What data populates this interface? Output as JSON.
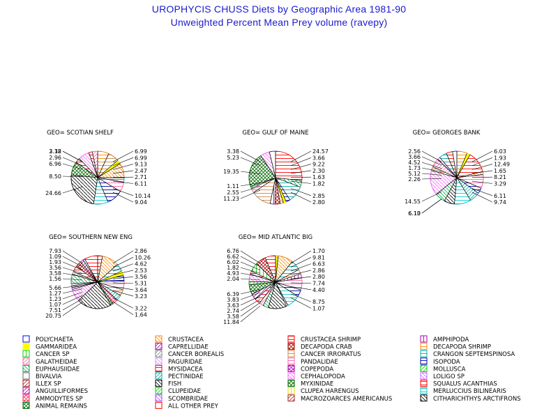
{
  "header": {
    "title": "UROPHYCIS CHUSS Diets by Geographic Area 1981-90",
    "subtitle": "Unweighted Percent Mean Prey volume (ravepy)"
  },
  "chart_data": [
    {
      "type": "pie",
      "title": "GEO= SCOTIAN SHELF",
      "slices": [
        {
          "prey": "DECAPODA SHRIMP",
          "value": 6.99
        },
        {
          "prey": "CANCER IRRORATUS",
          "value": 6.99
        },
        {
          "prey": "GAMMARIDEA",
          "value": 2.47
        },
        {
          "prey": "CRUSTACEA",
          "value": 9.13
        },
        {
          "prey": "CRANGON SEPTEMSPINOSA",
          "value": 2.71
        },
        {
          "prey": "PANDALIDAE",
          "value": 6.11
        },
        {
          "prey": "ISOPODA",
          "value": 10.14
        },
        {
          "prey": "MERLUCCIUS BILINEARIS",
          "value": 9.04
        },
        {
          "prey": "FISH",
          "value": 24.66
        },
        {
          "prey": "MYXINIDAE",
          "value": 8.5
        },
        {
          "prey": "CRUSTACEA SHRIMP",
          "value": 2.96
        },
        {
          "prey": "CEPHALOPODA",
          "value": 6.96
        },
        {
          "prey": "SQUALUS ACANTHIAS",
          "value": 2.18
        },
        {
          "prey": "GALATHEIDAE",
          "value": 3.32
        }
      ],
      "left_labels": [
        "3.32",
        "2.18",
        "2.96",
        "6.96",
        "8.50",
        "24.66"
      ],
      "right_labels": [
        "6.99",
        "6.99",
        "9.13",
        "2.47",
        "2.71",
        "6.11",
        "10.14",
        "9.04"
      ]
    },
    {
      "type": "pie",
      "title": "GEO= GULF OF MAINE",
      "slices": [
        {
          "prey": "CRUSTACEA SHRIMP",
          "value": 24.57
        },
        {
          "prey": "EUPHAUSIIDAE",
          "value": 3.66
        },
        {
          "prey": "CRANGON SEPTEMSPINOSA",
          "value": 9.22
        },
        {
          "prey": "ISOPODA",
          "value": 2.3
        },
        {
          "prey": "GAMMARIDEA",
          "value": 1.63
        },
        {
          "prey": "CRUSTACEA",
          "value": 1.82
        },
        {
          "prey": "DECAPODA CRAB",
          "value": 2.85
        },
        {
          "prey": "AMPHIPODA",
          "value": 2.8
        },
        {
          "prey": "CANCER IRRORATUS",
          "value": 11.23
        },
        {
          "prey": "PANDALIDAE",
          "value": 2.55
        },
        {
          "prey": "CLUPEIDAE",
          "value": 1.11
        },
        {
          "prey": "MYXINIDAE",
          "value": 19.35
        },
        {
          "prey": "CEPHALOPODA",
          "value": 5.23
        },
        {
          "prey": "POLYCHAETA",
          "value": 3.38
        }
      ],
      "left_labels": [
        "3.38",
        "5.23",
        "19.35",
        "1.11",
        "2.55",
        "11.23"
      ],
      "right_labels": [
        "24.57",
        "3.66",
        "9.22",
        "2.30",
        "1.63",
        "1.82",
        "2.85",
        "2.80"
      ]
    },
    {
      "type": "pie",
      "title": "GEO= GEORGES BANK",
      "slices": [
        {
          "prey": "DECAPODA SHRIMP",
          "value": 6.03
        },
        {
          "prey": "GAMMARIDEA",
          "value": 1.93
        },
        {
          "prey": "CRUSTACEA SHRIMP",
          "value": 12.49
        },
        {
          "prey": "CRUSTACEA",
          "value": 1.65
        },
        {
          "prey": "PANDALIDAE",
          "value": 8.21
        },
        {
          "prey": "ISOPODA",
          "value": 3.29
        },
        {
          "prey": "PECTINIDAE",
          "value": 6.11
        },
        {
          "prey": "MERLUCCIUS BILINEARIS",
          "value": 9.74
        },
        {
          "prey": "FISH",
          "value": 6.1
        },
        {
          "prey": "EUPHAUSIIDAE",
          "value": 6.13
        },
        {
          "prey": "CEPHALOPODA",
          "value": 14.55
        },
        {
          "prey": "CANCER IRRORATUS",
          "value": 2.26
        },
        {
          "prey": "GALATHEIDAE",
          "value": 5.12
        },
        {
          "prey": "LOLIGO SP",
          "value": 1.73
        },
        {
          "prey": "CRANGON SEPTEMSPINOSA",
          "value": 4.52
        },
        {
          "prey": "SQUALUS ACANTHIAS",
          "value": 3.66
        },
        {
          "prey": "POLYCHAETA",
          "value": 2.56
        }
      ],
      "left_labels": [
        "2.56",
        "3.66",
        "4.52",
        "1.73",
        "5.12",
        "2.26",
        "14.55",
        "6.13",
        "6.10"
      ],
      "right_labels": [
        "6.03",
        "1.93",
        "12.49",
        "1.65",
        "8.21",
        "3.29",
        "6.11",
        "9.74"
      ]
    },
    {
      "type": "pie",
      "title": "GEO= SOUTHERN NEW ENG",
      "slices": [
        {
          "prey": "CRUSTACEA SHRIMP",
          "value": 2.86
        },
        {
          "prey": "CRUSTACEA",
          "value": 10.26
        },
        {
          "prey": "CRANGON SEPTEMSPINOSA",
          "value": 4.62
        },
        {
          "prey": "GAMMARIDEA",
          "value": 2.53
        },
        {
          "prey": "ISOPODA",
          "value": 3.56
        },
        {
          "prey": "PANDALIDAE",
          "value": 5.31
        },
        {
          "prey": "CANCER IRRORATUS",
          "value": 3.64
        },
        {
          "prey": "PECTINIDAE",
          "value": 3.23
        },
        {
          "prey": "AMMODYTES SP",
          "value": 3.22
        },
        {
          "prey": "MYXINIDAE",
          "value": 1.64
        },
        {
          "prey": "FISH",
          "value": 20.75
        },
        {
          "prey": "CEPHALOPODA",
          "value": 7.51
        },
        {
          "prey": "LOLIGO SP",
          "value": 1.07
        },
        {
          "prey": "DECAPODA SHRIMP",
          "value": 1.23
        },
        {
          "prey": "PAGURIDAE",
          "value": 1.27
        },
        {
          "prey": "EUPHAUSIIDAE",
          "value": 5.66
        },
        {
          "prey": "GALATHEIDAE",
          "value": 1.56
        },
        {
          "prey": "SQUALUS ACANTHIAS",
          "value": 3.58
        },
        {
          "prey": "DECAPODA CRAB",
          "value": 3.56
        },
        {
          "prey": "ANGUILLIFORMES",
          "value": 1.93
        },
        {
          "prey": "POLYCHAETA",
          "value": 1.09
        },
        {
          "prey": "MYSIDACEA",
          "value": 7.93
        }
      ],
      "left_labels": [
        "7.93",
        "1.09",
        "1.93",
        "3.56",
        "3.58",
        "1.56",
        "5.66",
        "1.27",
        "1.23",
        "1.07",
        "7.51",
        "20.75"
      ],
      "right_labels": [
        "2.86",
        "10.26",
        "4.62",
        "2.53",
        "3.56",
        "5.31",
        "3.64",
        "3.23",
        "3.22",
        "1.64"
      ]
    },
    {
      "type": "pie",
      "title": "GEO= MID ATLANTIC BIG",
      "slices": [
        {
          "prey": "GAMMARIDEA",
          "value": 1.7
        },
        {
          "prey": "CRUSTACEA",
          "value": 9.81
        },
        {
          "prey": "CRANGON SEPTEMSPINOSA",
          "value": 6.63
        },
        {
          "prey": "DECAPODA SHRIMP",
          "value": 2.86
        },
        {
          "prey": "AMPHIPODA",
          "value": 2.8
        },
        {
          "prey": "PANDALIDAE",
          "value": 7.74
        },
        {
          "prey": "ISOPODA",
          "value": 4.4
        },
        {
          "prey": "MERLUCCIUS BILINEARIS",
          "value": 8.75
        },
        {
          "prey": "LOLIGO SP",
          "value": 1.07
        },
        {
          "prey": "FISH",
          "value": 11.84
        },
        {
          "prey": "EUPHAUSIIDAE",
          "value": 3.58
        },
        {
          "prey": "GALATHEIDAE",
          "value": 2.74
        },
        {
          "prey": "SQUALUS ACANTHIAS",
          "value": 3.63
        },
        {
          "prey": "ANGUILLIFORMES",
          "value": 3.83
        },
        {
          "prey": "MYXINIDAE",
          "value": 6.39
        },
        {
          "prey": "CLUPEIDAE",
          "value": 2.04
        },
        {
          "prey": "CEPHALOPODA",
          "value": 4.93
        },
        {
          "prey": "MYSIDACEA",
          "value": 1.82
        },
        {
          "prey": "CANCER SP",
          "value": 6.02
        },
        {
          "prey": "DECAPODA CRAB",
          "value": 6.62
        },
        {
          "prey": "CRUSTACEA SHRIMP",
          "value": 6.76
        }
      ],
      "left_labels": [
        "6.76",
        "6.62",
        "6.02",
        "1.82",
        "4.93",
        "2.04",
        "6.39",
        "3.83",
        "3.63",
        "2.74",
        "3.58",
        "11.84"
      ],
      "right_labels": [
        "1.70",
        "9.81",
        "6.63",
        "2.86",
        "2.80",
        "7.74",
        "4.40",
        "8.75",
        "1.07"
      ]
    }
  ],
  "legend": [
    {
      "name": "POLYCHAETA",
      "color": "#0000ff",
      "pattern": "empty"
    },
    {
      "name": "GAMMARIDEA",
      "color": "#ffff00",
      "pattern": "solid"
    },
    {
      "name": "CANCER SP",
      "color": "#00cc00",
      "pattern": "vert"
    },
    {
      "name": "GALATHEIDAE",
      "color": "#ff66aa",
      "pattern": "diag1"
    },
    {
      "name": "EUPHAUSIIDAE",
      "color": "#00aa44",
      "pattern": "diag2"
    },
    {
      "name": "BIVALVIA",
      "color": "#666666",
      "pattern": "empty"
    },
    {
      "name": "ILLEX SP",
      "color": "#aa2222",
      "pattern": "diag1"
    },
    {
      "name": "ANGUILLIFORMES",
      "color": "#aa00aa",
      "pattern": "diag1"
    },
    {
      "name": "AMMODYTES SP",
      "color": "#ff3366",
      "pattern": "cross"
    },
    {
      "name": "ANIMAL REMAINS",
      "color": "#006600",
      "pattern": "cross"
    },
    {
      "name": "CRUSTACEA",
      "color": "#ff8800",
      "pattern": "diag2"
    },
    {
      "name": "CAPRELLIDAE",
      "color": "#aa00aa",
      "pattern": "diag1"
    },
    {
      "name": "CANCER BOREALIS",
      "color": "#888888",
      "pattern": "diag1"
    },
    {
      "name": "PAGURIDAE",
      "color": "#cc99ff",
      "pattern": "diag2"
    },
    {
      "name": "MYSIDACEA",
      "color": "#ff0000",
      "pattern": "horiz"
    },
    {
      "name": "PECTINIDAE",
      "color": "#00aaaa",
      "pattern": "diag1"
    },
    {
      "name": "FISH",
      "color": "#000000",
      "pattern": "diag2"
    },
    {
      "name": "CLUPEIDAE",
      "color": "#00cc00",
      "pattern": "diag1"
    },
    {
      "name": "SCOMBRIDAE",
      "color": "#aa44ff",
      "pattern": "diag2"
    },
    {
      "name": "ALL OTHER PREY",
      "color": "#ff0000",
      "pattern": "empty"
    },
    {
      "name": "CRUSTACEA SHRIMP",
      "color": "#ff0000",
      "pattern": "horiz"
    },
    {
      "name": "DECAPODA CRAB",
      "color": "#aa0000",
      "pattern": "cross"
    },
    {
      "name": "CANCER IRRORATUS",
      "color": "#cc8844",
      "pattern": "horiz"
    },
    {
      "name": "PANDALIDAE",
      "color": "#ff66aa",
      "pattern": "horiz"
    },
    {
      "name": "COPEPODA",
      "color": "#aa00aa",
      "pattern": "cross"
    },
    {
      "name": "CEPHALOPODA",
      "color": "#ff66ff",
      "pattern": "diag2"
    },
    {
      "name": "MYXINIDAE",
      "color": "#006600",
      "pattern": "cross"
    },
    {
      "name": "CLUPEA HARENGUS",
      "color": "#dddd00",
      "pattern": "vert"
    },
    {
      "name": "MACROZOARCES AMERICANUS",
      "color": "#aa2222",
      "pattern": "diag1"
    },
    {
      "name": "AMPHIPODA",
      "color": "#aa00aa",
      "pattern": "vert"
    },
    {
      "name": "DECAPODA SHRIMP",
      "color": "#ff8800",
      "pattern": "horiz"
    },
    {
      "name": "CRANGON SEPTEMSPINOSA",
      "color": "#00aaaa",
      "pattern": "horiz"
    },
    {
      "name": "ISOPODA",
      "color": "#0000aa",
      "pattern": "horiz"
    },
    {
      "name": "MOLLUSCA",
      "color": "#00cc00",
      "pattern": "diag1"
    },
    {
      "name": "LOLIGO SP",
      "color": "#cc66ff",
      "pattern": "diag2"
    },
    {
      "name": "SQUALUS ACANTHIAS",
      "color": "#ff0000",
      "pattern": "horiz"
    },
    {
      "name": "MERLUCCIUS BILINEARIS",
      "color": "#00cccc",
      "pattern": "horiz"
    },
    {
      "name": "CITHARICHTHYS ARCTIFRONS",
      "color": "#000000",
      "pattern": "diag2"
    }
  ]
}
